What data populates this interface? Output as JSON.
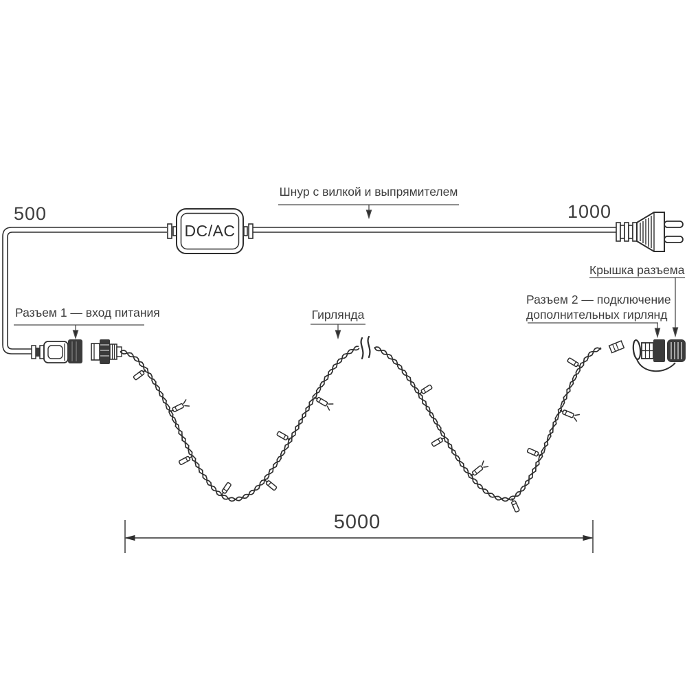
{
  "diagram": {
    "labels": {
      "cord": "Шнур с вилкой и выпрямителем",
      "connector1": "Разъем 1 — вход питания",
      "connector2_line1": "Разъем 2 — подключение",
      "connector2_line2": "дополнительных гирлянд",
      "cap": "Крышка разъема",
      "garland": "Гирлянда",
      "adapter": "DC/AC"
    },
    "dimensions": {
      "cord_left": "500",
      "cord_right": "1000",
      "garland_length": "5000"
    },
    "colors": {
      "line": "#2e2e2e",
      "dark_fill": "#3b3b3b",
      "background": "#ffffff",
      "text": "#3d3d3d"
    }
  }
}
